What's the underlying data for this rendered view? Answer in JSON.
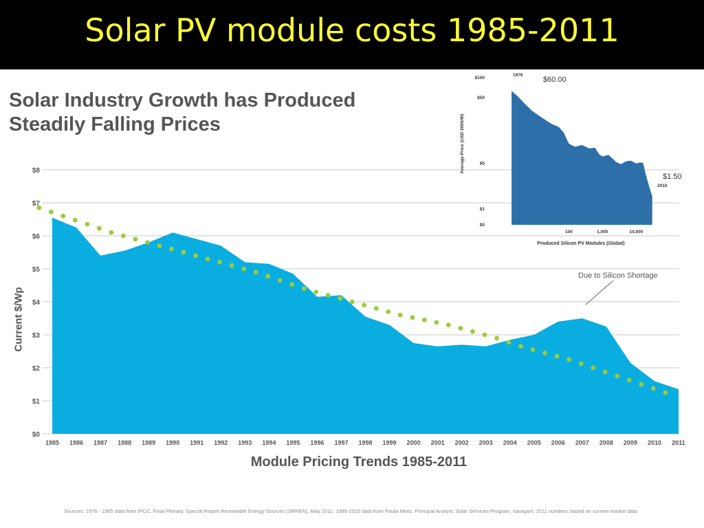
{
  "slide": {
    "title": "Solar PV module costs 1985-2011"
  },
  "chart_headline": {
    "line1": "Solar Industry Growth has Produced",
    "line2": "Steadily Falling Prices"
  },
  "sources_note": "Sources: 1976 - 1985 data from IPCC, Final Plenary, Special Report Renewable Energy Sources (SRREN), May 2011; 1985-2010 data from Paula Mints, Principal Analyst, Solar Services Program, Navigant; 2011 numbers based on current market data",
  "colors": {
    "title_text": "#ffff33",
    "area_fill": "#0aaddf",
    "trend_dots": "#9ccc3c",
    "inset_fill": "#2d6fa8",
    "gridline": "#c8c8c8",
    "text": "#555555"
  },
  "chart_data": [
    {
      "type": "area",
      "title": "Module Pricing Trends 1985-2011",
      "xlabel": "Module Pricing Trends 1985-2011",
      "ylabel": "Current $/Wp",
      "x": [
        "1985",
        "1986",
        "1987",
        "1988",
        "1989",
        "1990",
        "1991",
        "1992",
        "1993",
        "1994",
        "1995",
        "1996",
        "1997",
        "1998",
        "1999",
        "2000",
        "2001",
        "2002",
        "2003",
        "2004",
        "2005",
        "2006",
        "2007",
        "2008",
        "2009",
        "2010",
        "2011"
      ],
      "series": [
        {
          "values": [
            6.55,
            6.25,
            5.4,
            5.55,
            5.8,
            6.1,
            5.9,
            5.7,
            5.2,
            5.15,
            4.85,
            4.15,
            4.2,
            3.55,
            3.3,
            2.75,
            2.65,
            2.7,
            2.65,
            2.85,
            3.0,
            3.4,
            3.5,
            3.25,
            2.15,
            1.6,
            1.35
          ]
        },
        {
          "type": "scatter",
          "style": "dotted trend line",
          "values": [
            6.85,
            6.6,
            6.35,
            6.1,
            5.9,
            5.7,
            5.5,
            5.3,
            5.1,
            4.9,
            4.65,
            4.4,
            4.2,
            4.0,
            3.8,
            3.6,
            3.45,
            3.3,
            3.1,
            2.9,
            2.65,
            2.45,
            2.25,
            2.0,
            1.75,
            1.5,
            1.25
          ]
        }
      ],
      "yticks": [
        "$0",
        "$1",
        "$2",
        "$3",
        "$4",
        "$5",
        "$6",
        "$7",
        "$8"
      ],
      "ylim": [
        0,
        8
      ],
      "grid": true,
      "annotations": [
        {
          "text": "Due to Silicon Shortage",
          "x": "2007",
          "y": 3.6
        }
      ]
    },
    {
      "type": "area",
      "scale": "log-log",
      "ylabel": "Average Price (USD 2005/W)",
      "xlabel": "Produced Silicon PV Modules (Global)",
      "yticks": [
        "$100",
        "$50",
        "$5",
        "$1",
        "$0"
      ],
      "xticks": [
        "100",
        "1,000",
        "10,000"
      ],
      "series": [
        {
          "x": [
            2,
            3,
            5,
            8,
            15,
            30,
            50,
            70,
            100,
            150,
            250,
            400,
            600,
            800,
            1000,
            1500,
            2500,
            3500,
            5000,
            7000,
            10000,
            13000,
            16000,
            20000,
            25000,
            30000
          ],
          "values": [
            60,
            50,
            38,
            30,
            24,
            19,
            17,
            14,
            9.5,
            8.5,
            9,
            8,
            8.2,
            6.5,
            6,
            6.4,
            5,
            4.6,
            5.1,
            5.2,
            4.7,
            4.9,
            4.8,
            3.0,
            2.0,
            1.5
          ]
        }
      ],
      "annotations": [
        {
          "text": "1976",
          "near": "start"
        },
        {
          "text": "$60.00",
          "near": "start"
        },
        {
          "text": "2010",
          "near": "end"
        },
        {
          "text": "$1.50",
          "near": "end"
        }
      ]
    }
  ]
}
